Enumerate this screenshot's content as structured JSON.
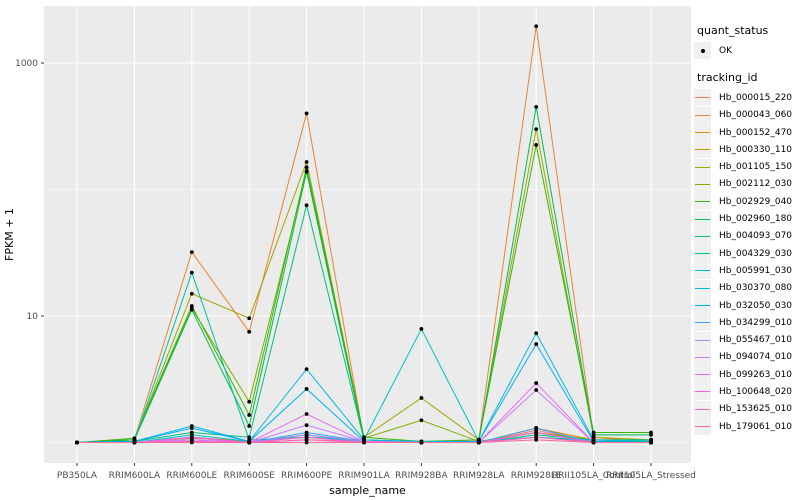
{
  "figure": {
    "y_axis": {
      "title": "FPKM + 1",
      "tick_labels": [
        "1000",
        "10"
      ],
      "tick_values": [
        1000,
        10
      ],
      "tick_color": "#4d4d4d"
    },
    "x_axis": {
      "title": "sample_name",
      "tick_color": "#4d4d4d"
    },
    "legend": {
      "quant_status_title": "quant_status",
      "quant_status_items": [
        {
          "label": "OK",
          "symbol": "black-point"
        }
      ],
      "tracking_id_title": "tracking_id"
    },
    "panel": {
      "background": "#ebebeb",
      "gridline_color": "#ffffff",
      "point_color": "#000000"
    }
  },
  "chart_data": {
    "type": "line",
    "title": "",
    "xlabel": "sample_name",
    "ylabel": "FPKM + 1",
    "y_scale": "log10",
    "ylim": [
      0.85,
      2500
    ],
    "y_major_gridlines": [
      10,
      1000
    ],
    "y_minor_gridlines": [
      1,
      100
    ],
    "legend_position": "right",
    "point_style": "small black dot (quant_status = OK)",
    "categories": [
      "PB350LA",
      "RRIM600LA",
      "RRIM600LE",
      "RRIM600SE",
      "RRIM600PE",
      "RRIM901LA",
      "RRIM928BA",
      "RRIM928LA",
      "RRIM928LE",
      "RRII105LA_Control",
      "RRII105LA_Stressed"
    ],
    "series": [
      {
        "name": "Hb_000015_220",
        "color": "#F8766D",
        "values": [
          1.0,
          1.0,
          1.02,
          1.0,
          1.05,
          1.02,
          1.0,
          1.0,
          1.25,
          1.02,
          1.0
        ]
      },
      {
        "name": "Hb_000043_060",
        "color": "#EA8331",
        "values": [
          1.0,
          1.05,
          32,
          7.5,
          400,
          1.05,
          1.0,
          1.05,
          1950,
          1.1,
          1.0
        ]
      },
      {
        "name": "Hb_000152_470",
        "color": "#D89000",
        "values": [
          1.0,
          1.0,
          1.1,
          1.02,
          1.15,
          1.02,
          1.0,
          1.0,
          1.3,
          1.05,
          1.0
        ]
      },
      {
        "name": "Hb_000330_110",
        "color": "#C09B00",
        "values": [
          1.0,
          1.0,
          1.08,
          1.02,
          1.1,
          1.05,
          1.0,
          1.0,
          1.2,
          1.02,
          1.0
        ]
      },
      {
        "name": "Hb_001105_150",
        "color": "#A3A500",
        "values": [
          1.0,
          1.05,
          15,
          9.6,
          165,
          1.1,
          2.25,
          1.05,
          300,
          1.1,
          1.05
        ]
      },
      {
        "name": "Hb_002112_030",
        "color": "#7CAE00",
        "values": [
          1.0,
          1.05,
          11.5,
          2.1,
          140,
          1.08,
          1.5,
          1.02,
          1.2,
          1.05,
          1.05
        ]
      },
      {
        "name": "Hb_002929_040",
        "color": "#39B600",
        "values": [
          1.0,
          1.08,
          12,
          1.65,
          150,
          1.1,
          1.02,
          1.05,
          225,
          1.2,
          1.2
        ]
      },
      {
        "name": "Hb_002960_180",
        "color": "#00BB4E",
        "values": [
          1.0,
          1.05,
          11.2,
          1.35,
          138,
          1.05,
          1.0,
          1.02,
          450,
          1.15,
          1.15
        ]
      },
      {
        "name": "Hb_004093_070",
        "color": "#00BF7D",
        "values": [
          1.0,
          1.02,
          1.2,
          1.1,
          75,
          1.05,
          1.0,
          1.0,
          1.15,
          1.05,
          1.05
        ]
      },
      {
        "name": "Hb_004329_030",
        "color": "#00C1A3",
        "values": [
          1.0,
          1.02,
          22,
          1.05,
          1.1,
          1.02,
          1.0,
          1.0,
          1.1,
          1.02,
          1.02
        ]
      },
      {
        "name": "Hb_005991_030",
        "color": "#00BFC4",
        "values": [
          1.0,
          1.0,
          1.15,
          1.02,
          1.1,
          1.05,
          7.9,
          1.02,
          1.1,
          1.05,
          1.02
        ]
      },
      {
        "name": "Hb_030370_080",
        "color": "#00BAE0",
        "values": [
          1.0,
          1.02,
          1.35,
          1.02,
          3.8,
          1.05,
          1.02,
          1.02,
          7.3,
          1.05,
          1.02
        ]
      },
      {
        "name": "Hb_032050_030",
        "color": "#00B0F6",
        "values": [
          1.0,
          1.02,
          1.3,
          1.02,
          2.65,
          1.02,
          1.0,
          1.02,
          6.0,
          1.02,
          1.0
        ]
      },
      {
        "name": "Hb_034299_010",
        "color": "#35A2FF",
        "values": [
          1.0,
          1.0,
          1.1,
          1.0,
          1.2,
          1.02,
          1.0,
          1.0,
          1.3,
          1.0,
          1.0
        ]
      },
      {
        "name": "Hb_055467_010",
        "color": "#9590FF",
        "values": [
          1.0,
          1.0,
          1.05,
          1.0,
          1.15,
          1.02,
          1.0,
          1.0,
          1.2,
          1.0,
          1.0
        ]
      },
      {
        "name": "Hb_094074_010",
        "color": "#C77CFF",
        "values": [
          1.0,
          1.0,
          1.05,
          1.0,
          1.37,
          1.02,
          1.0,
          1.0,
          2.6,
          1.0,
          1.0
        ]
      },
      {
        "name": "Hb_099263_010",
        "color": "#E76BF3",
        "values": [
          1.0,
          1.0,
          1.1,
          1.0,
          1.68,
          1.02,
          1.0,
          1.0,
          2.95,
          1.0,
          1.0
        ]
      },
      {
        "name": "Hb_100648_020",
        "color": "#FA62DB",
        "values": [
          1.0,
          1.0,
          1.09,
          1.0,
          1.1,
          1.0,
          1.0,
          1.0,
          1.2,
          1.0,
          1.0
        ]
      },
      {
        "name": "Hb_153625_010",
        "color": "#FF62BC",
        "values": [
          1.0,
          1.0,
          1.02,
          1.0,
          1.05,
          1.0,
          1.0,
          1.0,
          1.1,
          1.0,
          1.0
        ]
      },
      {
        "name": "Hb_179061_010",
        "color": "#FF6A98",
        "values": [
          1.0,
          1.0,
          1.0,
          1.0,
          1.0,
          1.0,
          1.0,
          1.0,
          1.05,
          1.0,
          1.0
        ]
      }
    ]
  }
}
